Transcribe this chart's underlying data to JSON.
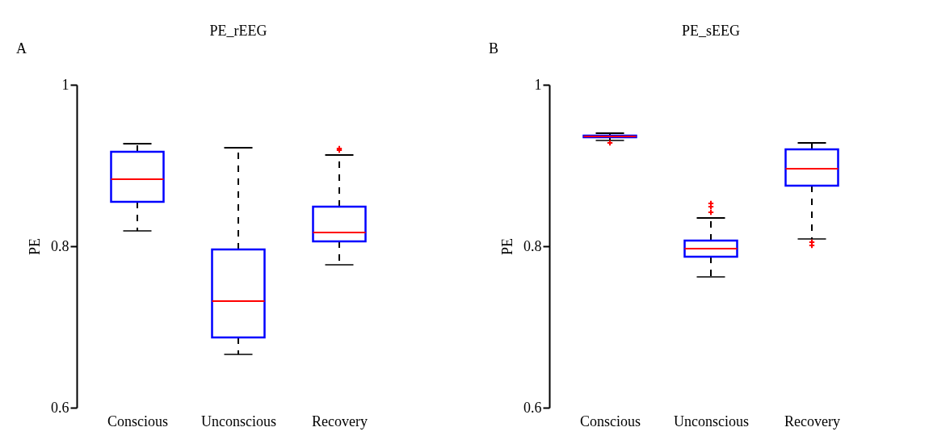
{
  "chart_data": [
    {
      "type": "box",
      "title": "PE_rEEG",
      "ylabel": "PE",
      "categories": [
        "Conscious",
        "Unconscious",
        "Recovery"
      ],
      "ylim": [
        0.6,
        1
      ],
      "yticks": [
        0.6,
        0.8,
        1
      ],
      "annotations": [
        "A"
      ],
      "series": [
        {
          "color": "#0000ff",
          "boxes": [
            {
              "low": 0.819,
              "q1": 0.855,
              "median": 0.883,
              "q3": 0.917,
              "high": 0.927
            },
            {
              "low": 0.666,
              "q1": 0.687,
              "median": 0.732,
              "q3": 0.796,
              "high": 0.922
            },
            {
              "low": 0.777,
              "q1": 0.806,
              "median": 0.817,
              "q3": 0.849,
              "high": 0.913,
              "outliers": [
                0.921,
                0.919
              ]
            }
          ]
        }
      ]
    },
    {
      "type": "box",
      "title": "PE_sEEG",
      "ylabel": "PE",
      "categories": [
        "Conscious",
        "Unconscious",
        "Recovery"
      ],
      "ylim": [
        0.6,
        1
      ],
      "yticks": [
        0.6,
        0.8,
        1
      ],
      "annotations": [
        "B"
      ],
      "series": [
        {
          "color": "#0000ff",
          "boxes": [
            {
              "low": 0.931,
              "q1": 0.935,
              "median": 0.936,
              "q3": 0.937,
              "high": 0.94,
              "outliers": [
                0.928
              ]
            },
            {
              "low": 0.762,
              "q1": 0.787,
              "median": 0.797,
              "q3": 0.807,
              "high": 0.835,
              "outliers": [
                0.853,
                0.849,
                0.842
              ]
            },
            {
              "low": 0.809,
              "q1": 0.875,
              "median": 0.896,
              "q3": 0.92,
              "high": 0.928,
              "outliers": [
                0.805,
                0.801
              ]
            }
          ]
        }
      ]
    }
  ]
}
